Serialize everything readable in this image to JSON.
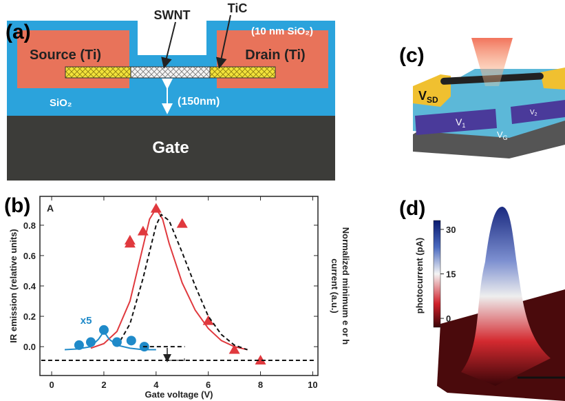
{
  "panel_a": {
    "label": "(a)",
    "swnt": "SWNT",
    "tic": "TiC",
    "oxide_top": "(10 nm SiO₂)",
    "source": "Source (Ti)",
    "drain": "Drain (Ti)",
    "sio2": "SiO₂",
    "thickness": "(150nm)",
    "gate": "Gate"
  },
  "chart_data": {
    "type": "scatter",
    "panel_label": "(b)",
    "xlabel": "Gate voltage (V)",
    "ylabel": "IR emission (relative units)",
    "right_label": [
      "Normalized minimum e or h",
      "current (a.u.)"
    ],
    "annotations": [
      "A",
      "x5"
    ],
    "xlim": [
      -0.45,
      10.2
    ],
    "ylim": [
      -0.19,
      0.99
    ],
    "xticks": [
      0,
      2,
      4,
      6,
      8,
      10
    ],
    "yticks": [
      {
        "value": 0,
        "label": "0.0"
      },
      0.2,
      0.4,
      0.6,
      0.8
    ],
    "series": [
      {
        "color": "#e0393e",
        "marker": "triangle",
        "x": [
          3,
          3,
          3.5,
          4,
          5,
          6,
          7,
          8
        ],
        "values": [
          0.7,
          0.68,
          0.76,
          0.91,
          0.81,
          0.17,
          -0.02,
          -0.09
        ]
      },
      {
        "color": "#e0393e",
        "linestyle": "solid",
        "x": [
          1.5,
          2,
          2.5,
          3,
          3.25,
          3.5,
          3.75,
          4,
          4.25,
          4.5,
          5,
          5.5,
          6,
          6.5,
          7,
          7.5
        ],
        "values": [
          -0.01,
          0.02,
          0.1,
          0.3,
          0.48,
          0.66,
          0.84,
          0.91,
          0.84,
          0.68,
          0.42,
          0.24,
          0.12,
          0.04,
          0.0,
          -0.02
        ]
      },
      {
        "color": "#111111",
        "linestyle": "dashed",
        "x": [
          2.5,
          3,
          3.5,
          4,
          4.2,
          4.5,
          5,
          5.5,
          6,
          6.5,
          7,
          7.5
        ],
        "values": [
          0.0,
          0.15,
          0.45,
          0.8,
          0.87,
          0.83,
          0.62,
          0.4,
          0.2,
          0.08,
          0.01,
          -0.02
        ]
      },
      {
        "color": "#1f8ac9",
        "marker": "circle",
        "x": [
          1.05,
          1.5,
          2,
          2.5,
          3.05,
          3.55
        ],
        "values": [
          0.01,
          0.03,
          0.11,
          0.03,
          0.04,
          0.0
        ]
      },
      {
        "color": "#1f8ac9",
        "linestyle": "solid",
        "x": [
          0.5,
          1,
          1.5,
          1.8,
          2,
          2.2,
          2.5,
          3,
          3.5,
          4
        ],
        "values": [
          -0.02,
          -0.015,
          0.0,
          0.05,
          0.1,
          0.05,
          0.01,
          -0.01,
          -0.02,
          -0.02
        ]
      },
      {
        "color": "#111111",
        "linestyle": "dashed",
        "x": [
          3.5,
          5.1
        ],
        "values": [
          0,
          0
        ]
      },
      {
        "color": "#111111",
        "linestyle": "dashed",
        "x": [
          -0.4,
          10.1
        ],
        "values": [
          -0.09,
          -0.09
        ]
      }
    ]
  },
  "panel_c": {
    "label": "(c)",
    "vsd": [
      "V",
      "SD"
    ],
    "v1": [
      "V",
      "1"
    ],
    "v2": [
      "V",
      "2"
    ],
    "vg": [
      "V",
      "G"
    ]
  },
  "panel_d": {
    "label": "(d)",
    "colorbar_label": "photocurrent (pA)",
    "colorbar_ticks": [
      0,
      15,
      30
    ],
    "colorbar_lim": [
      -3,
      33
    ]
  }
}
